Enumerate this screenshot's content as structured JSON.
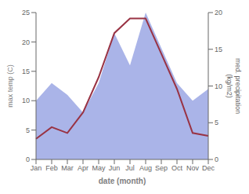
{
  "chart_data": {
    "type": "line",
    "xlabel": "date (month)",
    "ylabel": "max temp (C)",
    "y2label": "med. precipitation\n(kg/m2)",
    "categories": [
      "Jan",
      "Feb",
      "Mar",
      "Apr",
      "May",
      "Jun",
      "Jul",
      "Aug",
      "Sep",
      "Oct",
      "Nov",
      "Dec"
    ],
    "series": [
      {
        "type": "area",
        "color": "#aab4e8",
        "values": [
          10,
          13,
          11,
          8,
          13,
          21.5,
          16,
          25,
          19,
          13,
          10,
          12
        ]
      },
      {
        "type": "line",
        "color": "#993344",
        "values": [
          3.5,
          5.5,
          4.5,
          8.0,
          14.0,
          21.5,
          24.0,
          24.0,
          18.0,
          12.0,
          4.5,
          4.0
        ]
      }
    ],
    "ylim": [
      0,
      25
    ],
    "yticks": [
      0,
      5,
      10,
      15,
      20,
      25
    ],
    "y2lim": [
      0,
      20
    ],
    "y2ticks": [
      0,
      5,
      10,
      15,
      20
    ],
    "grid": false
  }
}
